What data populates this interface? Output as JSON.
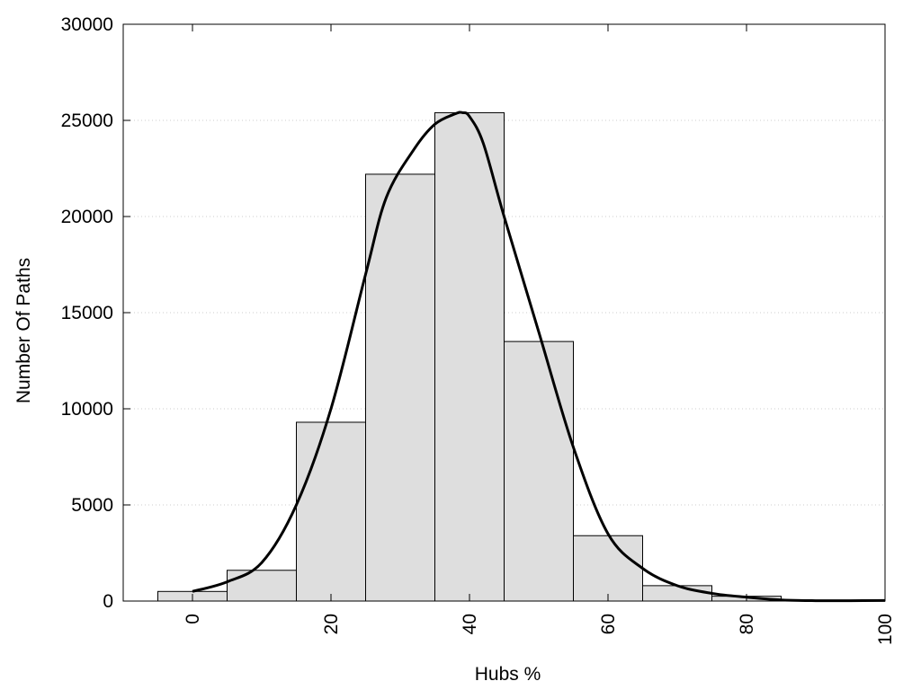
{
  "chart_data": {
    "type": "bar",
    "title": "",
    "xlabel": "Hubs %",
    "ylabel": "Number Of Paths",
    "xlim": [
      -10,
      100
    ],
    "ylim": [
      0,
      30000
    ],
    "x_ticks": [
      "0",
      "20",
      "40",
      "60",
      "80",
      "100"
    ],
    "y_ticks": [
      "0",
      "5000",
      "10000",
      "15000",
      "20000",
      "25000",
      "30000"
    ],
    "grid": "horizontal dotted",
    "legend": "none",
    "bin_width": 10,
    "categories": [
      0,
      10,
      20,
      30,
      40,
      50,
      60,
      70,
      80
    ],
    "values": [
      500,
      1600,
      9300,
      22200,
      25400,
      13500,
      3400,
      800,
      250
    ],
    "curve": {
      "x": [
        0,
        5,
        10,
        15,
        20,
        25,
        28,
        32,
        35,
        38,
        39,
        40,
        42,
        45,
        50,
        55,
        60,
        65,
        70,
        75,
        80,
        85,
        90,
        95,
        100
      ],
      "y": [
        500,
        1000,
        2000,
        5000,
        10000,
        17000,
        21000,
        23500,
        24800,
        25350,
        25400,
        25200,
        23800,
        20000,
        14000,
        8000,
        3500,
        1700,
        800,
        400,
        200,
        60,
        20,
        20,
        30
      ]
    },
    "colors": {
      "bar_fill": "#dedede",
      "bar_stroke": "#000000",
      "curve": "#000000",
      "grid": "#cccccc"
    }
  }
}
